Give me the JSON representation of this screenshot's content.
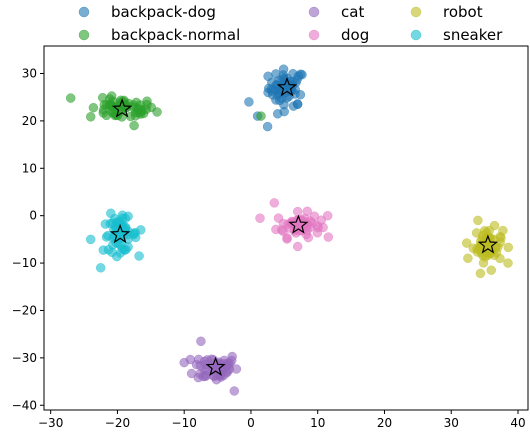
{
  "chart_data": {
    "type": "scatter",
    "xlim": [
      -31,
      41.5
    ],
    "ylim": [
      -41,
      35.8
    ],
    "x_ticks": [
      -30,
      -20,
      -10,
      0,
      10,
      20,
      30,
      40
    ],
    "y_ticks": [
      30,
      20,
      10,
      0,
      -10,
      -20,
      -30,
      -40
    ],
    "x_tick_labels": [
      "−30",
      "−20",
      "−10",
      "0",
      "10",
      "20",
      "30",
      "40"
    ],
    "y_tick_labels": [
      "30",
      "20",
      "10",
      "0",
      "−10",
      "−20",
      "−30",
      "−40"
    ],
    "grid": false,
    "legend_placement": "top-center, above plot",
    "marker": "circle, alpha 0.6",
    "centroid_marker": "star, black outline",
    "series": [
      {
        "name": "backpack-dog",
        "color": "#1f77b4",
        "centroid": [
          5.4,
          27
        ],
        "spread": [
          2.5,
          3.5
        ],
        "extra_points": [
          [
            -0.3,
            24
          ],
          [
            1,
            21
          ],
          [
            2.5,
            18.8
          ],
          [
            4,
            21.5
          ],
          [
            7,
            23.5
          ]
        ]
      },
      {
        "name": "backpack-normal",
        "color": "#2ca02c",
        "centroid": [
          -19.3,
          22.5
        ],
        "spread": [
          4.5,
          2.0
        ],
        "extra_points": [
          [
            1.5,
            21
          ],
          [
            -27,
            24.8
          ],
          [
            -17.5,
            19
          ]
        ]
      },
      {
        "name": "cat",
        "color": "#9467bd",
        "centroid": [
          -5.3,
          -32
        ],
        "spread": [
          3.0,
          2.8
        ],
        "extra_points": [
          [
            -10,
            -31
          ],
          [
            -2.5,
            -37
          ],
          [
            -7.5,
            -26.5
          ]
        ]
      },
      {
        "name": "dog",
        "color": "#e377c2",
        "centroid": [
          7.1,
          -2
        ],
        "spread": [
          3.0,
          2.3
        ],
        "extra_points": [
          [
            3.5,
            2.7
          ],
          [
            11.5,
            0
          ],
          [
            7,
            -6.5
          ]
        ]
      },
      {
        "name": "robot",
        "color": "#bcbd22",
        "centroid": [
          35.5,
          -6.2
        ],
        "spread": [
          2.0,
          3.2
        ],
        "extra_points": [
          [
            32.5,
            -9
          ],
          [
            38.5,
            -10
          ],
          [
            36,
            -11.5
          ],
          [
            34,
            -1
          ]
        ]
      },
      {
        "name": "sneaker",
        "color": "#17becf",
        "centroid": [
          -19.6,
          -4
        ],
        "spread": [
          2.3,
          3.2
        ],
        "extra_points": [
          [
            -24,
            -5
          ],
          [
            -22.5,
            -11
          ],
          [
            -16.5,
            -3
          ],
          [
            -21,
            0.5
          ]
        ]
      }
    ]
  }
}
